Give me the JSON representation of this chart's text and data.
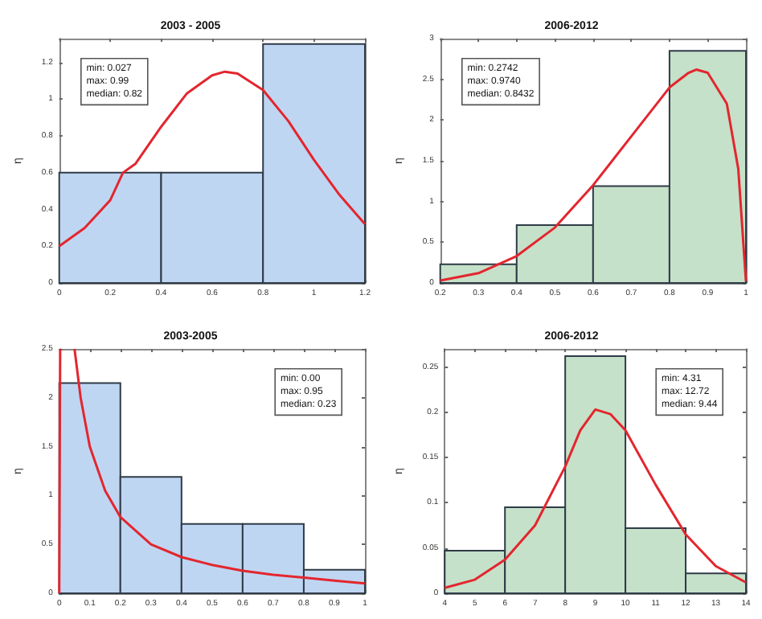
{
  "chart_data": [
    {
      "type": "histogram",
      "title": "2003 - 2005",
      "ylabel": "η",
      "bins": [
        0,
        0.4,
        0.8,
        1.2
      ],
      "xlim": [
        0,
        1.2
      ],
      "xticks": [
        0,
        0.2,
        0.4,
        0.6,
        0.8,
        1,
        1.2
      ],
      "ylim": [
        0,
        1.33
      ],
      "yticks": [
        0,
        0.2,
        0.4,
        0.6,
        0.8,
        1,
        1.2
      ],
      "grid": false,
      "annotations": [
        "min: 0.027\nmax: 0.99\nmedian: 0.82"
      ],
      "series": [
        {
          "color": "#bfd6f2",
          "values": [
            0.6,
            0.6,
            1.3
          ]
        },
        {
          "type": "line",
          "color": "#e3262e",
          "x": [
            0,
            0.1,
            0.2,
            0.25,
            0.3,
            0.4,
            0.5,
            0.6,
            0.65,
            0.7,
            0.8,
            0.9,
            1.0,
            1.1,
            1.2
          ],
          "values": [
            0.2,
            0.3,
            0.45,
            0.6,
            0.65,
            0.85,
            1.03,
            1.13,
            1.15,
            1.14,
            1.05,
            0.88,
            0.67,
            0.48,
            0.32
          ]
        }
      ]
    },
    {
      "type": "histogram",
      "title": "2006-2012",
      "ylabel": "η",
      "bins": [
        0.2,
        0.4,
        0.6,
        0.8,
        1.0
      ],
      "xlim": [
        0.2,
        1
      ],
      "xticks": [
        0.2,
        0.3,
        0.4,
        0.5,
        0.6,
        0.7,
        0.8,
        0.9,
        1
      ],
      "ylim": [
        0,
        3
      ],
      "yticks": [
        0,
        0.5,
        1,
        1.5,
        2,
        2.5,
        3
      ],
      "grid": false,
      "annotations": [
        "min: 0.2742\nmax: 0.9740\nmedian: 0.8432"
      ],
      "series": [
        {
          "color": "#c5e1c9",
          "values": [
            0.23,
            0.71,
            1.19,
            2.85
          ]
        },
        {
          "type": "line",
          "color": "#e3262e",
          "x": [
            0.2,
            0.3,
            0.4,
            0.5,
            0.6,
            0.7,
            0.8,
            0.85,
            0.87,
            0.9,
            0.95,
            0.98,
            1.0
          ],
          "values": [
            0.03,
            0.12,
            0.33,
            0.68,
            1.2,
            1.8,
            2.4,
            2.58,
            2.62,
            2.58,
            2.2,
            1.4,
            0.02
          ]
        }
      ]
    },
    {
      "type": "histogram",
      "title": "2003-2005",
      "ylabel": "η",
      "bins": [
        0,
        0.2,
        0.4,
        0.6,
        0.8,
        1.0
      ],
      "xlim": [
        0,
        1
      ],
      "xticks": [
        0,
        0.1,
        0.2,
        0.3,
        0.4,
        0.5,
        0.6,
        0.7,
        0.8,
        0.9,
        1
      ],
      "ylim": [
        0,
        2.5
      ],
      "yticks": [
        0,
        0.5,
        1,
        1.5,
        2,
        2.5
      ],
      "grid": false,
      "annotations": [
        "min: 0.00\nmax: 0.95\nmedian: 0.23"
      ],
      "series": [
        {
          "color": "#bfd6f2",
          "values": [
            2.15,
            1.19,
            0.71,
            0.71,
            0.24
          ]
        },
        {
          "type": "line",
          "color": "#e3262e",
          "x": [
            0,
            0.003,
            0.02,
            0.05,
            0.07,
            0.1,
            0.15,
            0.2,
            0.3,
            0.4,
            0.5,
            0.6,
            0.7,
            0.8,
            0.9,
            1.0
          ],
          "values": [
            0,
            2.5,
            null,
            2.5,
            2.0,
            1.5,
            1.05,
            0.78,
            0.5,
            0.37,
            0.29,
            0.23,
            0.19,
            0.16,
            0.13,
            0.1
          ]
        }
      ]
    },
    {
      "type": "histogram",
      "title": "2006-2012",
      "ylabel": "η",
      "bins": [
        4,
        6,
        8,
        10,
        12,
        14
      ],
      "xlim": [
        4,
        14
      ],
      "xticks": [
        4,
        5,
        6,
        7,
        8,
        9,
        10,
        11,
        12,
        13,
        14
      ],
      "ylim": [
        0,
        0.27
      ],
      "yticks": [
        0,
        0.05,
        0.1,
        0.15,
        0.2,
        0.25
      ],
      "grid": false,
      "annotations": [
        "min: 4.31\nmax: 12.72\nmedian: 9.44"
      ],
      "series": [
        {
          "color": "#c5e1c9",
          "values": [
            0.047,
            0.095,
            0.262,
            0.072,
            0.022
          ]
        },
        {
          "type": "line",
          "color": "#e3262e",
          "x": [
            4,
            5,
            6,
            7,
            8,
            8.5,
            9,
            9.5,
            10,
            11,
            12,
            13,
            14
          ],
          "values": [
            0.006,
            0.015,
            0.037,
            0.075,
            0.14,
            0.18,
            0.203,
            0.198,
            0.18,
            0.12,
            0.065,
            0.03,
            0.012
          ]
        }
      ]
    }
  ]
}
